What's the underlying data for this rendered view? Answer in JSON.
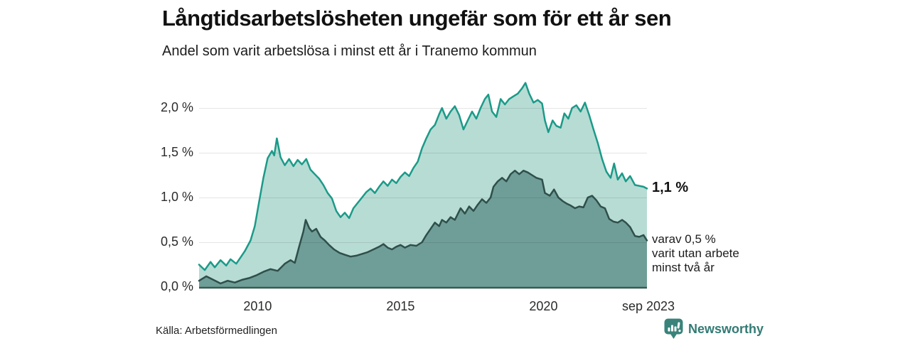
{
  "header": {
    "title": "Långtidsarbetslösheten ungefär som för ett år sen",
    "subtitle": "Andel som varit arbetslösa i minst ett år i Tranemo kommun"
  },
  "chart_data": {
    "type": "area",
    "title": "Långtidsarbetslösheten ungefär som för ett år sen",
    "subtitle": "Andel som varit arbetslösa i minst ett år i Tranemo kommun",
    "unit": "%",
    "grid": true,
    "legend": "none",
    "x_axis": {
      "range_years": [
        2008.0,
        2023.67
      ],
      "ticks": [
        {
          "label": "2010",
          "year": 2010
        },
        {
          "label": "2015",
          "year": 2015
        },
        {
          "label": "2020",
          "year": 2020
        },
        {
          "label": "sep 2023",
          "year": 2023.67
        }
      ]
    },
    "y_axis": {
      "range": [
        0,
        2.4
      ],
      "ticks": [
        {
          "label": "0,0 %",
          "value": 0.0
        },
        {
          "label": "0,5 %",
          "value": 0.5
        },
        {
          "label": "1,0 %",
          "value": 1.0
        },
        {
          "label": "1,5 %",
          "value": 1.5
        },
        {
          "label": "2,0 %",
          "value": 2.0
        }
      ]
    },
    "series": [
      {
        "name": "Andel arbetslösa minst ett år",
        "line_color": "#1b9a88",
        "fill_color": "#b7dcd4",
        "end_value_label": "1,1 %",
        "points": [
          [
            2008.0,
            0.25
          ],
          [
            2008.2,
            0.19
          ],
          [
            2008.4,
            0.28
          ],
          [
            2008.55,
            0.22
          ],
          [
            2008.75,
            0.3
          ],
          [
            2008.95,
            0.24
          ],
          [
            2009.1,
            0.31
          ],
          [
            2009.3,
            0.26
          ],
          [
            2009.45,
            0.33
          ],
          [
            2009.6,
            0.4
          ],
          [
            2009.8,
            0.52
          ],
          [
            2009.95,
            0.68
          ],
          [
            2010.1,
            0.95
          ],
          [
            2010.25,
            1.22
          ],
          [
            2010.4,
            1.44
          ],
          [
            2010.55,
            1.52
          ],
          [
            2010.63,
            1.47
          ],
          [
            2010.72,
            1.66
          ],
          [
            2010.85,
            1.45
          ],
          [
            2011.0,
            1.36
          ],
          [
            2011.15,
            1.43
          ],
          [
            2011.3,
            1.35
          ],
          [
            2011.45,
            1.42
          ],
          [
            2011.6,
            1.37
          ],
          [
            2011.75,
            1.43
          ],
          [
            2011.9,
            1.31
          ],
          [
            2012.05,
            1.26
          ],
          [
            2012.2,
            1.21
          ],
          [
            2012.35,
            1.14
          ],
          [
            2012.5,
            1.05
          ],
          [
            2012.65,
            0.99
          ],
          [
            2012.8,
            0.85
          ],
          [
            2012.95,
            0.78
          ],
          [
            2013.1,
            0.83
          ],
          [
            2013.25,
            0.77
          ],
          [
            2013.4,
            0.88
          ],
          [
            2013.55,
            0.94
          ],
          [
            2013.7,
            1.0
          ],
          [
            2013.85,
            1.06
          ],
          [
            2014.0,
            1.1
          ],
          [
            2014.15,
            1.05
          ],
          [
            2014.3,
            1.12
          ],
          [
            2014.45,
            1.18
          ],
          [
            2014.6,
            1.13
          ],
          [
            2014.75,
            1.2
          ],
          [
            2014.9,
            1.16
          ],
          [
            2015.05,
            1.23
          ],
          [
            2015.2,
            1.28
          ],
          [
            2015.35,
            1.24
          ],
          [
            2015.5,
            1.33
          ],
          [
            2015.65,
            1.4
          ],
          [
            2015.8,
            1.55
          ],
          [
            2015.95,
            1.66
          ],
          [
            2016.1,
            1.76
          ],
          [
            2016.25,
            1.81
          ],
          [
            2016.4,
            1.93
          ],
          [
            2016.5,
            2.0
          ],
          [
            2016.65,
            1.88
          ],
          [
            2016.8,
            1.96
          ],
          [
            2016.95,
            2.02
          ],
          [
            2017.1,
            1.92
          ],
          [
            2017.25,
            1.76
          ],
          [
            2017.4,
            1.86
          ],
          [
            2017.55,
            1.96
          ],
          [
            2017.7,
            1.88
          ],
          [
            2017.85,
            2.0
          ],
          [
            2018.0,
            2.1
          ],
          [
            2018.12,
            2.15
          ],
          [
            2018.25,
            1.96
          ],
          [
            2018.4,
            1.9
          ],
          [
            2018.55,
            2.1
          ],
          [
            2018.7,
            2.04
          ],
          [
            2018.85,
            2.1
          ],
          [
            2019.0,
            2.13
          ],
          [
            2019.15,
            2.16
          ],
          [
            2019.3,
            2.22
          ],
          [
            2019.42,
            2.28
          ],
          [
            2019.55,
            2.16
          ],
          [
            2019.7,
            2.06
          ],
          [
            2019.85,
            2.09
          ],
          [
            2020.0,
            2.05
          ],
          [
            2020.1,
            1.86
          ],
          [
            2020.22,
            1.73
          ],
          [
            2020.37,
            1.86
          ],
          [
            2020.5,
            1.8
          ],
          [
            2020.65,
            1.78
          ],
          [
            2020.78,
            1.94
          ],
          [
            2020.92,
            1.88
          ],
          [
            2021.05,
            2.0
          ],
          [
            2021.2,
            2.03
          ],
          [
            2021.35,
            1.96
          ],
          [
            2021.5,
            2.06
          ],
          [
            2021.65,
            1.92
          ],
          [
            2021.8,
            1.76
          ],
          [
            2021.95,
            1.61
          ],
          [
            2022.1,
            1.43
          ],
          [
            2022.25,
            1.29
          ],
          [
            2022.4,
            1.22
          ],
          [
            2022.52,
            1.38
          ],
          [
            2022.65,
            1.2
          ],
          [
            2022.8,
            1.27
          ],
          [
            2022.93,
            1.18
          ],
          [
            2023.08,
            1.24
          ],
          [
            2023.25,
            1.14
          ],
          [
            2023.4,
            1.13
          ],
          [
            2023.55,
            1.12
          ],
          [
            2023.67,
            1.1
          ]
        ]
      },
      {
        "name": "Andel arbetslösa minst två år",
        "line_color": "#2f4f4b",
        "fill_color": "#6f9e98",
        "end_value_label": "0,5 %",
        "points": [
          [
            2008.0,
            0.07
          ],
          [
            2008.25,
            0.12
          ],
          [
            2008.5,
            0.08
          ],
          [
            2008.75,
            0.04
          ],
          [
            2009.0,
            0.07
          ],
          [
            2009.25,
            0.05
          ],
          [
            2009.5,
            0.08
          ],
          [
            2009.75,
            0.1
          ],
          [
            2010.0,
            0.13
          ],
          [
            2010.25,
            0.17
          ],
          [
            2010.5,
            0.2
          ],
          [
            2010.75,
            0.18
          ],
          [
            2011.0,
            0.26
          ],
          [
            2011.2,
            0.3
          ],
          [
            2011.35,
            0.27
          ],
          [
            2011.5,
            0.45
          ],
          [
            2011.65,
            0.62
          ],
          [
            2011.73,
            0.75
          ],
          [
            2011.85,
            0.66
          ],
          [
            2011.95,
            0.62
          ],
          [
            2012.1,
            0.65
          ],
          [
            2012.25,
            0.56
          ],
          [
            2012.4,
            0.52
          ],
          [
            2012.55,
            0.47
          ],
          [
            2012.72,
            0.42
          ],
          [
            2012.92,
            0.38
          ],
          [
            2013.1,
            0.36
          ],
          [
            2013.3,
            0.34
          ],
          [
            2013.5,
            0.35
          ],
          [
            2013.7,
            0.37
          ],
          [
            2013.9,
            0.39
          ],
          [
            2014.1,
            0.42
          ],
          [
            2014.3,
            0.45
          ],
          [
            2014.45,
            0.48
          ],
          [
            2014.6,
            0.44
          ],
          [
            2014.75,
            0.42
          ],
          [
            2014.9,
            0.45
          ],
          [
            2015.05,
            0.47
          ],
          [
            2015.2,
            0.44
          ],
          [
            2015.4,
            0.47
          ],
          [
            2015.6,
            0.46
          ],
          [
            2015.8,
            0.5
          ],
          [
            2015.95,
            0.58
          ],
          [
            2016.1,
            0.65
          ],
          [
            2016.25,
            0.72
          ],
          [
            2016.4,
            0.68
          ],
          [
            2016.5,
            0.75
          ],
          [
            2016.65,
            0.72
          ],
          [
            2016.8,
            0.78
          ],
          [
            2016.95,
            0.75
          ],
          [
            2017.15,
            0.88
          ],
          [
            2017.3,
            0.82
          ],
          [
            2017.45,
            0.9
          ],
          [
            2017.6,
            0.85
          ],
          [
            2017.75,
            0.92
          ],
          [
            2017.9,
            0.98
          ],
          [
            2018.05,
            0.94
          ],
          [
            2018.2,
            1.0
          ],
          [
            2018.3,
            1.12
          ],
          [
            2018.45,
            1.18
          ],
          [
            2018.6,
            1.22
          ],
          [
            2018.75,
            1.18
          ],
          [
            2018.9,
            1.26
          ],
          [
            2019.05,
            1.3
          ],
          [
            2019.2,
            1.26
          ],
          [
            2019.35,
            1.3
          ],
          [
            2019.5,
            1.28
          ],
          [
            2019.65,
            1.25
          ],
          [
            2019.8,
            1.22
          ],
          [
            2020.0,
            1.2
          ],
          [
            2020.1,
            1.05
          ],
          [
            2020.27,
            1.02
          ],
          [
            2020.42,
            1.09
          ],
          [
            2020.57,
            1.0
          ],
          [
            2020.72,
            0.96
          ],
          [
            2020.87,
            0.93
          ],
          [
            2021.0,
            0.91
          ],
          [
            2021.15,
            0.88
          ],
          [
            2021.3,
            0.9
          ],
          [
            2021.45,
            0.89
          ],
          [
            2021.6,
            1.0
          ],
          [
            2021.75,
            1.02
          ],
          [
            2021.9,
            0.97
          ],
          [
            2022.05,
            0.9
          ],
          [
            2022.2,
            0.88
          ],
          [
            2022.35,
            0.76
          ],
          [
            2022.5,
            0.73
          ],
          [
            2022.65,
            0.72
          ],
          [
            2022.8,
            0.75
          ],
          [
            2022.93,
            0.72
          ],
          [
            2023.08,
            0.67
          ],
          [
            2023.25,
            0.57
          ],
          [
            2023.4,
            0.56
          ],
          [
            2023.55,
            0.58
          ],
          [
            2023.67,
            0.52
          ]
        ]
      }
    ],
    "baseline_color": "#3a5a54",
    "gridline_color": "rgba(0,0,0,0.10)"
  },
  "annotations": {
    "primary_value": "1,1 %",
    "secondary_lines": [
      "varav 0,5 %",
      "varit utan arbete",
      "minst två år"
    ]
  },
  "footer": {
    "source": "Källa: Arbetsförmedlingen",
    "brand": "Newsworthy",
    "brand_color": "#337b74"
  }
}
